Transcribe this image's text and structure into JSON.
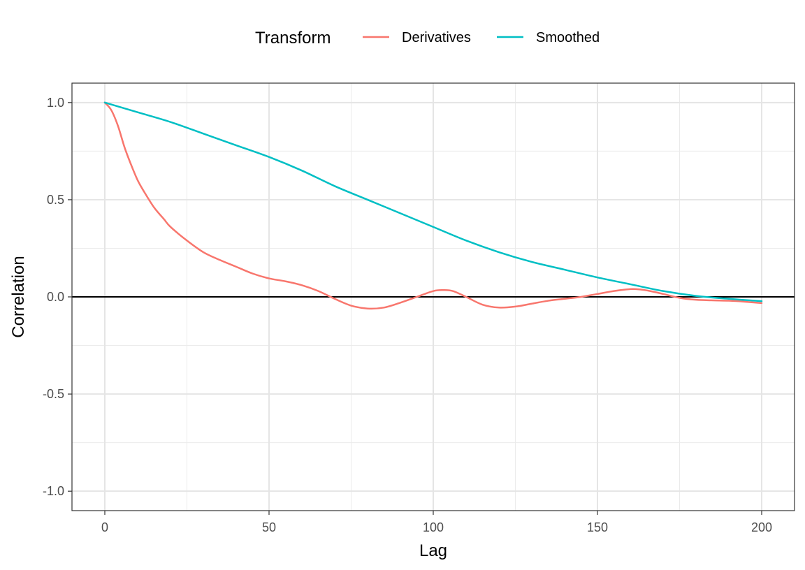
{
  "chart_data": {
    "type": "line",
    "xlabel": "Lag",
    "ylabel": "Correlation",
    "xlim": [
      -10,
      210
    ],
    "ylim": [
      -1.1,
      1.1
    ],
    "x_ticks": [
      0,
      50,
      100,
      150,
      200
    ],
    "x_tick_labels": [
      "0",
      "50",
      "100",
      "150",
      "200"
    ],
    "y_ticks": [
      -1.0,
      -0.5,
      0.0,
      0.5,
      1.0
    ],
    "y_tick_labels": [
      "-1.0",
      "-0.5",
      "0.0",
      "0.5",
      "1.0"
    ],
    "grid": true,
    "reference_line_y": 0,
    "legend": {
      "title": "Transform",
      "position": "top",
      "entries": [
        "Derivatives",
        "Smoothed"
      ]
    },
    "series": [
      {
        "name": "Derivatives",
        "color": "#F8766D",
        "x": [
          0,
          2,
          4,
          6,
          8,
          10,
          12,
          15,
          18,
          20,
          25,
          30,
          35,
          40,
          45,
          50,
          55,
          60,
          65,
          70,
          75,
          80,
          85,
          90,
          95,
          100,
          103,
          106,
          110,
          115,
          120,
          125,
          130,
          135,
          140,
          145,
          150,
          155,
          160,
          163,
          166,
          170,
          175,
          180,
          185,
          190,
          195,
          200
        ],
        "y": [
          1.0,
          0.96,
          0.88,
          0.77,
          0.68,
          0.6,
          0.54,
          0.46,
          0.4,
          0.36,
          0.29,
          0.23,
          0.19,
          0.155,
          0.12,
          0.095,
          0.08,
          0.06,
          0.03,
          -0.01,
          -0.045,
          -0.06,
          -0.055,
          -0.03,
          0.0,
          0.03,
          0.035,
          0.03,
          0.0,
          -0.04,
          -0.055,
          -0.05,
          -0.035,
          -0.02,
          -0.01,
          0.0,
          0.015,
          0.03,
          0.04,
          0.038,
          0.03,
          0.015,
          -0.005,
          -0.015,
          -0.018,
          -0.02,
          -0.025,
          -0.032
        ]
      },
      {
        "name": "Smoothed",
        "color": "#00BFC4",
        "x": [
          0,
          10,
          20,
          30,
          40,
          50,
          60,
          70,
          80,
          90,
          100,
          110,
          120,
          130,
          140,
          150,
          160,
          170,
          180,
          190,
          200
        ],
        "y": [
          1.0,
          0.95,
          0.9,
          0.84,
          0.78,
          0.72,
          0.65,
          0.57,
          0.5,
          0.43,
          0.36,
          0.29,
          0.23,
          0.18,
          0.14,
          0.1,
          0.065,
          0.03,
          0.005,
          -0.01,
          -0.022
        ]
      }
    ]
  }
}
